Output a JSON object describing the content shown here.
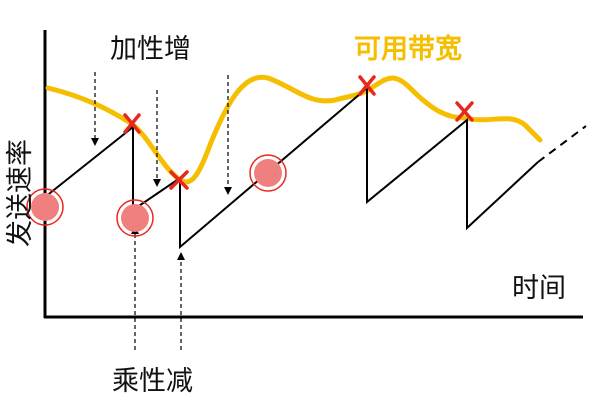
{
  "labels": {
    "additive_increase": "加性增",
    "multiplicative_decrease": "乘性减",
    "available_bandwidth": "可用带宽",
    "y_axis": "发送速率",
    "x_axis": "时间"
  },
  "colors": {
    "bandwidth_curve": "#F6BE00",
    "bandwidth_label": "#F6BE00",
    "loss_marker": "#E8281E",
    "highlight_circle_fill": "#F08080",
    "highlight_circle_stroke": "#E8281E",
    "axis": "#000000",
    "rate_line": "#000000"
  },
  "icons": {
    "loss_marker": "x-mark-icon",
    "highlight": "circle-highlight-icon",
    "arrow": "dashed-arrow-icon"
  }
}
